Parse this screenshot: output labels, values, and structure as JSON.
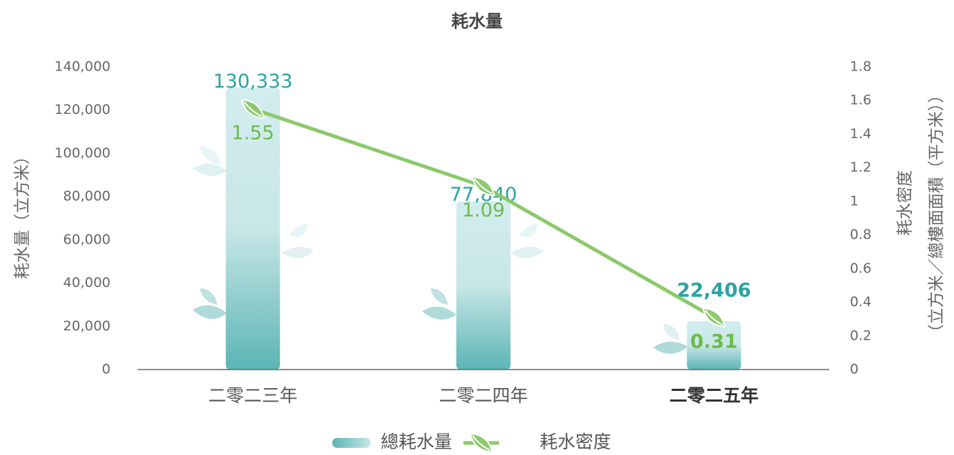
{
  "chart_data": {
    "type": "bar-line",
    "title": "耗水量",
    "categories": [
      "二零二三年",
      "二零二四年",
      "二零二五年"
    ],
    "series": [
      {
        "name": "總耗水量",
        "type": "bar",
        "color": "#5bb5b5",
        "values": [
          130333,
          77840,
          22406
        ],
        "value_labels": [
          "130,333",
          "77,840",
          "22,406"
        ]
      },
      {
        "name": "耗水密度",
        "type": "line",
        "axis": "y2",
        "color": "#8cc96b",
        "values": [
          1.55,
          1.09,
          0.31
        ]
      }
    ],
    "ylabel": "耗水量（立方米）",
    "y2label": [
      "耗水密度",
      "（立方米／總樓面面積（平方米））"
    ],
    "ylim": [
      0,
      140000
    ],
    "yticks": [
      0,
      {
        "value": 20000,
        "label": "20,000"
      },
      {
        "value": 40000,
        "label": "40,000"
      },
      {
        "value": 60000,
        "label": "60,000"
      },
      {
        "value": 80000,
        "label": "80,000"
      },
      {
        "value": 100000,
        "label": "100,000"
      },
      {
        "value": 120000,
        "label": "120,000"
      },
      {
        "value": 140000,
        "label": "140,000"
      }
    ],
    "y2lim": [
      0,
      1.8
    ],
    "y2ticks": [
      0,
      0.2,
      0.4,
      0.6,
      0.8,
      1,
      1.2,
      1.4,
      1.6,
      1.8
    ],
    "legend": "bottom"
  }
}
